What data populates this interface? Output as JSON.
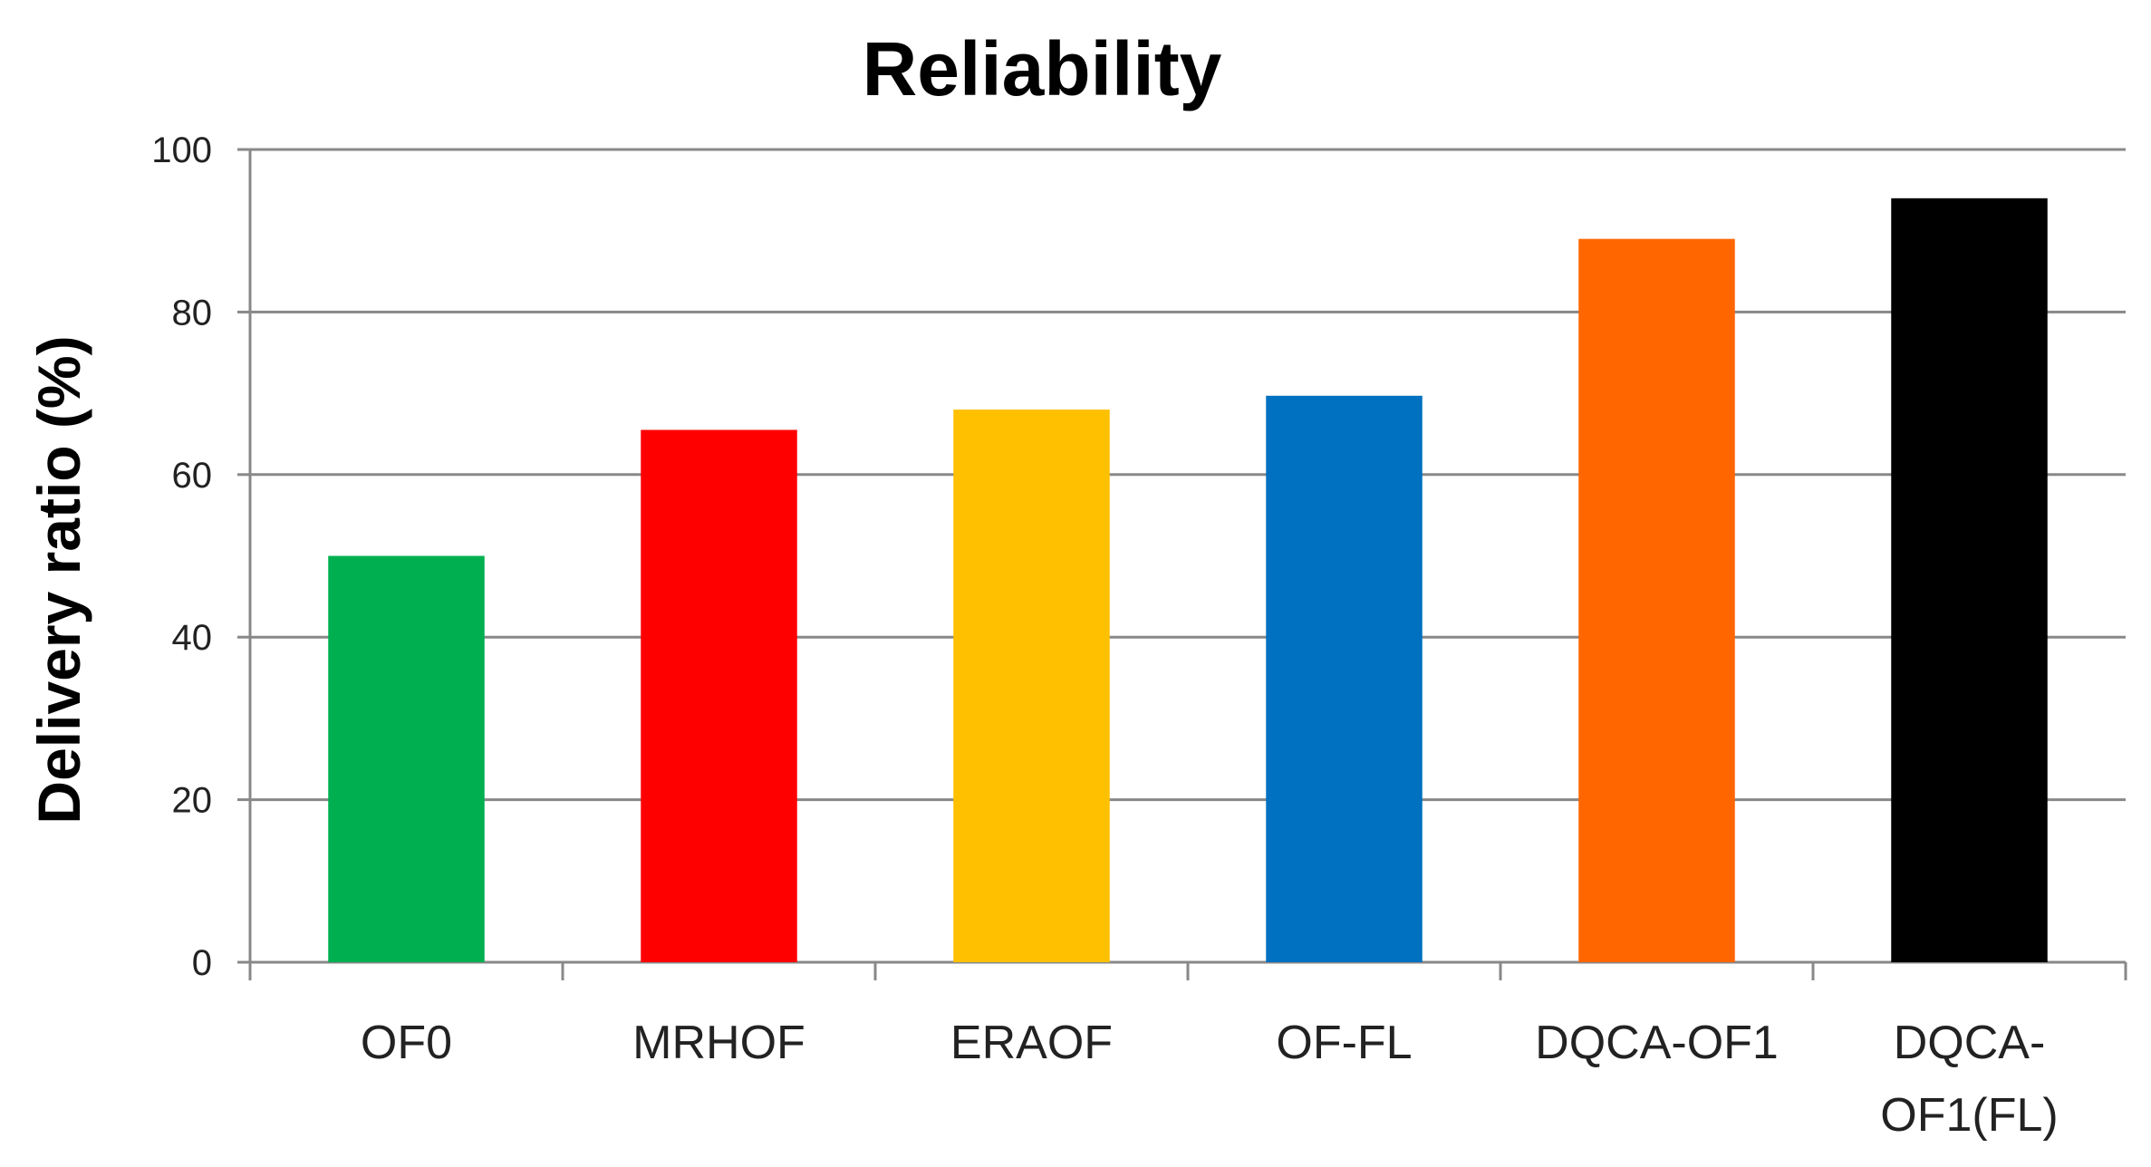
{
  "chart_data": {
    "type": "bar",
    "title": "Reliability",
    "xlabel": "",
    "ylabel": "Delivery ratio (%)",
    "ylim": [
      0,
      100
    ],
    "yticks": [
      "0",
      "20",
      "40",
      "60",
      "80",
      "100"
    ],
    "grid": true,
    "legend": "none",
    "categories": [
      [
        "OF0"
      ],
      [
        "MRHOF"
      ],
      [
        "ERAOF"
      ],
      [
        "OF-FL"
      ],
      [
        "DQCA-OF1"
      ],
      [
        "DQCA-",
        "OF1(FL)"
      ]
    ],
    "values": [
      50,
      65.5,
      68,
      69.7,
      89,
      94
    ],
    "colors": [
      "#00B050",
      "#FF0000",
      "#FFC000",
      "#0070C0",
      "#FF6600",
      "#000000"
    ]
  }
}
